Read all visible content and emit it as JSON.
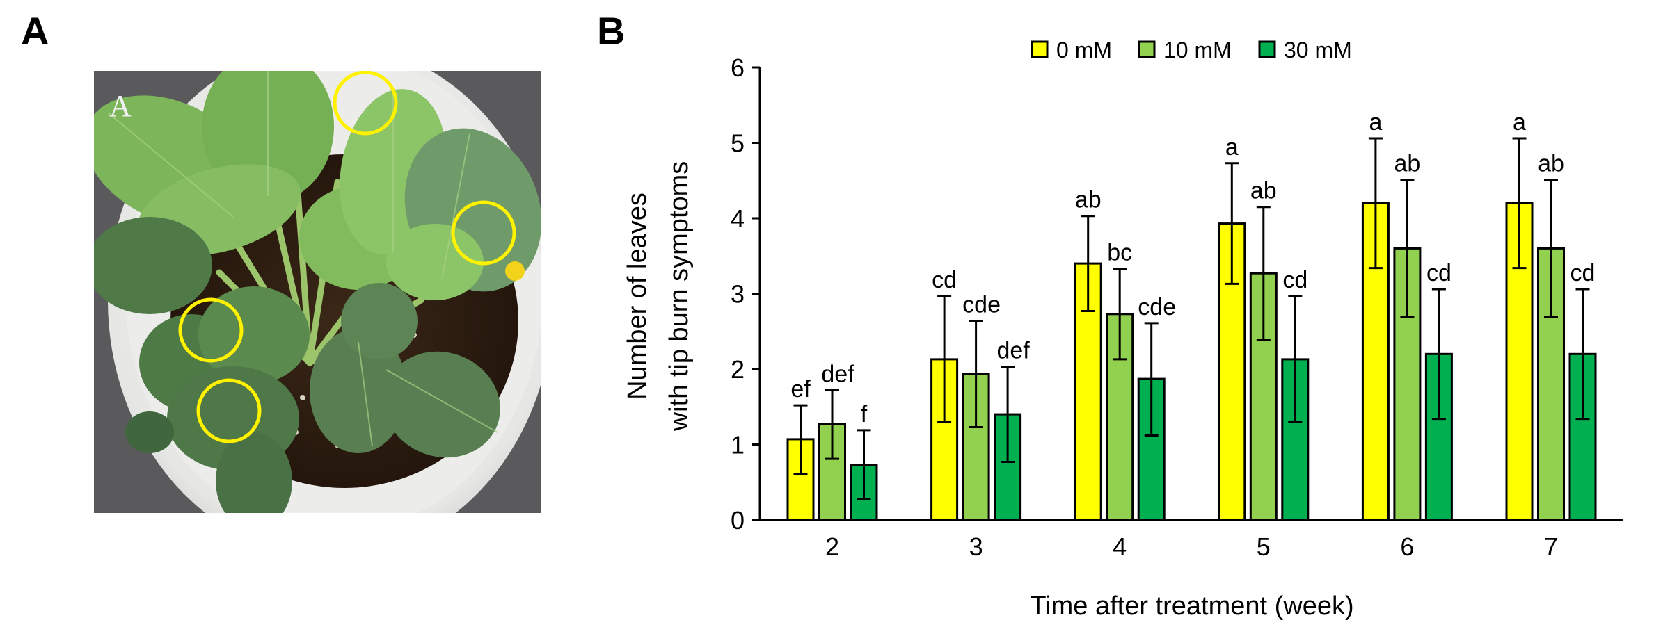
{
  "panels": {
    "a_label": "A",
    "b_label": "B",
    "photo_inner_label": "A"
  },
  "photo": {
    "description": "Top view of potted strawberry plant with tip burn symptoms circled",
    "highlight_circle_count": 4,
    "highlight_color": "#FFF200",
    "background_color": "#5A5A5C"
  },
  "chart_data": {
    "type": "bar",
    "title": "",
    "xlabel": "Time after treatment (week)",
    "ylabel_lines": [
      "Number of leaves",
      "with tip burn symptoms"
    ],
    "ylabel": "Number of leaves with tip burn symptoms",
    "ylim": [
      0,
      6
    ],
    "yticks": [
      0,
      1,
      2,
      3,
      4,
      5,
      6
    ],
    "grid": false,
    "legend_position": "top-center",
    "categories": [
      "2",
      "3",
      "4",
      "5",
      "6",
      "7"
    ],
    "series": [
      {
        "name": "0 mM",
        "color": "#FFFF00",
        "values": [
          1.07,
          2.13,
          3.4,
          3.93,
          4.2,
          4.2
        ],
        "err_low": [
          0.61,
          1.3,
          2.77,
          3.13,
          3.34,
          3.34
        ],
        "err_high": [
          1.52,
          2.97,
          4.03,
          4.73,
          5.06,
          5.06
        ],
        "letters": [
          "ef",
          "cd",
          "ab",
          "a",
          "a",
          "a"
        ]
      },
      {
        "name": "10 mM",
        "color": "#92D050",
        "values": [
          1.27,
          1.94,
          2.73,
          3.27,
          3.6,
          3.6
        ],
        "err_low": [
          0.81,
          1.23,
          2.13,
          2.39,
          2.69,
          2.69
        ],
        "err_high": [
          1.72,
          2.64,
          3.33,
          4.15,
          4.51,
          4.51
        ],
        "letters": [
          "def",
          "cde",
          "bc",
          "ab",
          "ab",
          "ab"
        ]
      },
      {
        "name": "30 mM",
        "color": "#00B050",
        "values": [
          0.73,
          1.4,
          1.87,
          2.13,
          2.2,
          2.2
        ],
        "err_low": [
          0.28,
          0.77,
          1.12,
          1.3,
          1.34,
          1.34
        ],
        "err_high": [
          1.19,
          2.03,
          2.61,
          2.97,
          3.06,
          3.06
        ],
        "letters": [
          "f",
          "def",
          "cde",
          "cd",
          "cd",
          "cd"
        ]
      }
    ]
  }
}
